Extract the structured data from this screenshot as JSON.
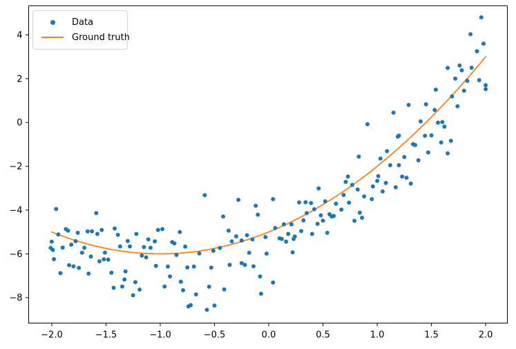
{
  "colors": {
    "data_points": "#1f77b4",
    "ground_truth_line": "#ff7f0e",
    "spine": "#000000",
    "background": "#ffffff",
    "legend_border": "#d5d5d5"
  },
  "legend": {
    "items": [
      {
        "label": "Data",
        "marker": "point",
        "color": "#1f77b4"
      },
      {
        "label": "Ground truth",
        "marker": "line",
        "color": "#ff7f0e"
      }
    ]
  },
  "chart_data": {
    "type": "scatter",
    "title": "",
    "xlabel": "",
    "ylabel": "",
    "grid": false,
    "legend_position": "upper left",
    "xlim": [
      -2.213,
      2.2
    ],
    "ylim": [
      -9.16,
      5.33
    ],
    "x_ticks": [
      -2.0,
      -1.5,
      -1.0,
      -0.5,
      0.0,
      0.5,
      1.0,
      1.5,
      2.0
    ],
    "x_tick_labels": [
      "−2.0",
      "−1.5",
      "−1.0",
      "−0.5",
      "0.0",
      "0.5",
      "1.0",
      "1.5",
      "2.0"
    ],
    "y_ticks": [
      4,
      2,
      0,
      -2,
      -4,
      -6,
      -8
    ],
    "y_tick_labels": [
      "4",
      "2",
      "0",
      "−2",
      "−4",
      "−6",
      "−8"
    ],
    "series": [
      {
        "name": "Data",
        "type": "scatter",
        "color": "#1f77b4",
        "marker_radius": 3,
        "points": [
          [
            -1.96,
            -3.95
          ],
          [
            -1.59,
            -4.14
          ],
          [
            -1.94,
            -5.11
          ],
          [
            -1.87,
            -4.87
          ],
          [
            -1.85,
            -4.94
          ],
          [
            -1.76,
            -5.04
          ],
          [
            -1.67,
            -4.97
          ],
          [
            -1.63,
            -4.97
          ],
          [
            -1.58,
            -5.09
          ],
          [
            -1.54,
            -4.91
          ],
          [
            -1.42,
            -4.84
          ],
          [
            -1.39,
            -5.13
          ],
          [
            -2.0,
            -5.44
          ],
          [
            -2.01,
            -5.73
          ],
          [
            -1.99,
            -5.82
          ],
          [
            -1.9,
            -5.71
          ],
          [
            -1.82,
            -5.58
          ],
          [
            -1.78,
            -5.42
          ],
          [
            -1.7,
            -5.72
          ],
          [
            -1.72,
            -5.95
          ],
          [
            -1.64,
            -6.12
          ],
          [
            -1.56,
            -6.34
          ],
          [
            -1.52,
            -6.25
          ],
          [
            -1.48,
            -6.26
          ],
          [
            -1.51,
            -5.94
          ],
          [
            -1.37,
            -5.66
          ],
          [
            -1.3,
            -5.41
          ],
          [
            -1.28,
            -5.66
          ],
          [
            -1.22,
            -5.09
          ],
          [
            -1.11,
            -5.34
          ],
          [
            -1.09,
            -5.72
          ],
          [
            -1.15,
            -5.69
          ],
          [
            -1.17,
            -6.08
          ],
          [
            -1.13,
            -6.16
          ],
          [
            -1.98,
            -6.24
          ],
          [
            -1.84,
            -6.52
          ],
          [
            -1.8,
            -6.57
          ],
          [
            -1.75,
            -6.64
          ],
          [
            -1.92,
            -6.88
          ],
          [
            -1.66,
            -6.9
          ],
          [
            -1.45,
            -6.86
          ],
          [
            -1.32,
            -6.8
          ],
          [
            -1.33,
            -7.17
          ],
          [
            -1.23,
            -7.29
          ],
          [
            -1.35,
            -7.49
          ],
          [
            -1.43,
            -7.55
          ],
          [
            -1.19,
            -7.63
          ],
          [
            -1.25,
            -7.89
          ],
          [
            -0.59,
            -3.32
          ],
          [
            -0.28,
            -3.53
          ],
          [
            -0.12,
            -3.8
          ],
          [
            0.04,
            -3.5
          ],
          [
            -0.1,
            -4.21
          ],
          [
            -0.42,
            -4.29
          ],
          [
            -1.02,
            -4.91
          ],
          [
            -0.98,
            -4.87
          ],
          [
            -0.82,
            -5.0
          ],
          [
            -0.37,
            -4.94
          ],
          [
            -0.3,
            -5.2
          ],
          [
            -0.34,
            -5.43
          ],
          [
            -0.25,
            -5.39
          ],
          [
            -0.2,
            -5.15
          ],
          [
            -0.15,
            -5.34
          ],
          [
            0.06,
            -4.82
          ],
          [
            -0.03,
            -5.23
          ],
          [
            -1.05,
            -5.43
          ],
          [
            -0.89,
            -5.46
          ],
          [
            -0.87,
            -5.52
          ],
          [
            -0.77,
            -5.67
          ],
          [
            -0.85,
            -6.05
          ],
          [
            -0.64,
            -5.98
          ],
          [
            -0.51,
            -5.86
          ],
          [
            -0.45,
            -5.73
          ],
          [
            -0.18,
            -5.95
          ],
          [
            -0.02,
            -5.99
          ],
          [
            -1.04,
            -6.55
          ],
          [
            -0.93,
            -6.58
          ],
          [
            -0.75,
            -6.62
          ],
          [
            -0.69,
            -6.58
          ],
          [
            -0.53,
            -6.63
          ],
          [
            -0.36,
            -6.5
          ],
          [
            -0.25,
            -6.42
          ],
          [
            -0.22,
            -6.5
          ],
          [
            -0.14,
            -6.57
          ],
          [
            -0.91,
            -7.03
          ],
          [
            -0.81,
            -7.27
          ],
          [
            -0.96,
            -7.49
          ],
          [
            -0.79,
            -7.66
          ],
          [
            -0.55,
            -7.5
          ],
          [
            -0.67,
            -7.85
          ],
          [
            -0.41,
            -7.62
          ],
          [
            -0.74,
            -8.4
          ],
          [
            -0.72,
            -8.34
          ],
          [
            -0.5,
            -8.36
          ],
          [
            -0.57,
            -8.55
          ],
          [
            -0.08,
            -7.03
          ],
          [
            -0.07,
            -7.82
          ],
          [
            0.04,
            -7.31
          ],
          [
            0.73,
            -2.47
          ],
          [
            0.71,
            -2.71
          ],
          [
            0.77,
            -2.85
          ],
          [
            0.82,
            -3.06
          ],
          [
            1.0,
            -2.67
          ],
          [
            0.96,
            -2.92
          ],
          [
            1.08,
            -2.76
          ],
          [
            1.05,
            -3.15
          ],
          [
            1.17,
            -2.96
          ],
          [
            0.46,
            -3.01
          ],
          [
            0.69,
            -3.31
          ],
          [
            0.88,
            -3.38
          ],
          [
            0.95,
            -3.5
          ],
          [
            0.28,
            -3.65
          ],
          [
            0.34,
            -3.64
          ],
          [
            0.39,
            -3.68
          ],
          [
            0.52,
            -3.6
          ],
          [
            0.62,
            -3.71
          ],
          [
            0.74,
            -3.66
          ],
          [
            0.42,
            -3.96
          ],
          [
            0.67,
            -3.98
          ],
          [
            0.35,
            -4.14
          ],
          [
            0.48,
            -4.24
          ],
          [
            0.56,
            -4.19
          ],
          [
            0.58,
            -4.29
          ],
          [
            0.6,
            -4.27
          ],
          [
            0.84,
            -4.12
          ],
          [
            0.86,
            -4.35
          ],
          [
            0.32,
            -4.47
          ],
          [
            0.45,
            -4.63
          ],
          [
            0.5,
            -4.48
          ],
          [
            0.14,
            -4.65
          ],
          [
            0.21,
            -4.65
          ],
          [
            0.79,
            -4.49
          ],
          [
            0.18,
            -5.09
          ],
          [
            0.24,
            -5.21
          ],
          [
            0.3,
            -4.96
          ],
          [
            0.4,
            -5.09
          ],
          [
            0.54,
            -5.04
          ],
          [
            0.1,
            -5.29
          ],
          [
            0.12,
            -5.32
          ],
          [
            0.16,
            -5.44
          ],
          [
            0.23,
            -5.32
          ],
          [
            0.22,
            -5.93
          ],
          [
            1.15,
            0.45
          ],
          [
            0.91,
            -0.08
          ],
          [
            1.2,
            -0.6
          ],
          [
            0.83,
            -1.56
          ],
          [
            1.09,
            -1.31
          ],
          [
            1.03,
            -1.65
          ],
          [
            1.12,
            -1.95
          ],
          [
            1.2,
            -1.95
          ],
          [
            1.01,
            -2.45
          ],
          [
            1.96,
            4.8
          ],
          [
            1.86,
            4.03
          ],
          [
            1.98,
            3.6
          ],
          [
            1.92,
            3.25
          ],
          [
            1.76,
            2.6
          ],
          [
            1.65,
            2.49
          ],
          [
            1.78,
            2.38
          ],
          [
            1.87,
            2.5
          ],
          [
            1.72,
            2.0
          ],
          [
            1.83,
            1.9
          ],
          [
            1.94,
            1.93
          ],
          [
            2.0,
            1.7
          ],
          [
            2.0,
            1.52
          ],
          [
            1.54,
            1.5
          ],
          [
            1.69,
            1.19
          ],
          [
            1.8,
            1.45
          ],
          [
            1.53,
            0.57
          ],
          [
            1.45,
            0.83
          ],
          [
            1.29,
            0.8
          ],
          [
            1.74,
            0.74
          ],
          [
            1.4,
            0.05
          ],
          [
            1.56,
            -0.01
          ],
          [
            1.6,
            0.02
          ],
          [
            1.62,
            -0.19
          ],
          [
            1.19,
            -0.65
          ],
          [
            1.44,
            -0.61
          ],
          [
            1.5,
            -0.59
          ],
          [
            1.33,
            -0.99
          ],
          [
            1.35,
            -1.03
          ],
          [
            1.59,
            -0.91
          ],
          [
            1.68,
            -0.84
          ],
          [
            1.47,
            -1.37
          ],
          [
            1.65,
            -1.41
          ],
          [
            1.25,
            -1.58
          ],
          [
            1.38,
            -1.73
          ],
          [
            1.23,
            -2.47
          ],
          [
            1.27,
            -2.52
          ],
          [
            1.31,
            -2.79
          ]
        ]
      },
      {
        "name": "Ground truth",
        "type": "line",
        "color": "#ff7f0e",
        "line_width": 1.8,
        "curve": "quadratic",
        "formula": "y = x^2 + 2x - 5",
        "coefficients": [
          1,
          2,
          -5
        ],
        "x_range": [
          -2.0,
          2.0
        ]
      }
    ]
  }
}
